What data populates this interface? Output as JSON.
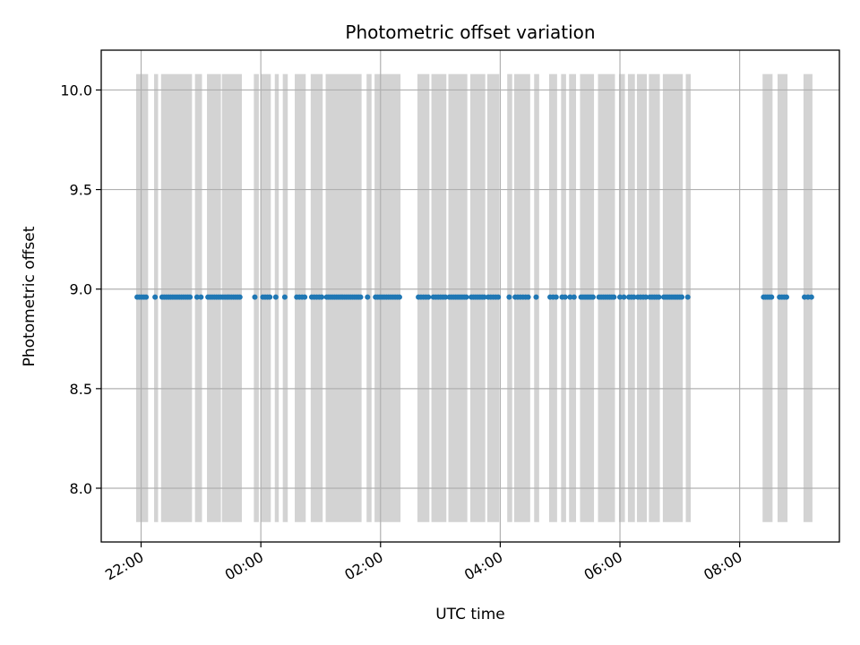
{
  "chart_data": {
    "type": "scatter",
    "title": "Photometric offset variation",
    "xlabel": "UTC time",
    "ylabel": "Photometric offset",
    "grid": true,
    "x_tick_labels": [
      "22:00",
      "00:00",
      "02:00",
      "04:00",
      "06:00",
      "08:00"
    ],
    "y_tick_labels": [
      "8.0",
      "8.5",
      "9.0",
      "9.5",
      "10.0"
    ],
    "y_ticks": [
      8.0,
      8.5,
      9.0,
      9.5,
      10.0
    ],
    "xlim": [
      "21:20",
      "09:40"
    ],
    "ylim": [
      7.73,
      10.2
    ],
    "shaded_bands_range": [
      7.83,
      10.08
    ],
    "shaded_intervals": [
      [
        "21:55",
        "22:07"
      ],
      [
        "22:13",
        "22:17"
      ],
      [
        "22:20",
        "22:51"
      ],
      [
        "22:54",
        "23:01"
      ],
      [
        "23:06",
        "23:20"
      ],
      [
        "23:21",
        "23:41"
      ],
      [
        "23:53",
        "23:58"
      ],
      [
        "00:00",
        "00:10"
      ],
      [
        "00:14",
        "00:18"
      ],
      [
        "00:22",
        "00:27"
      ],
      [
        "00:34",
        "00:45"
      ],
      [
        "00:50",
        "01:02"
      ],
      [
        "01:05",
        "01:41"
      ],
      [
        "01:46",
        "01:51"
      ],
      [
        "01:54",
        "02:20"
      ],
      [
        "02:37",
        "02:49"
      ],
      [
        "02:51",
        "03:06"
      ],
      [
        "03:08",
        "03:27"
      ],
      [
        "03:30",
        "03:45"
      ],
      [
        "03:47",
        "03:59"
      ],
      [
        "04:07",
        "04:12"
      ],
      [
        "04:14",
        "04:30"
      ],
      [
        "04:34",
        "04:39"
      ],
      [
        "04:49",
        "04:57"
      ],
      [
        "05:01",
        "05:06"
      ],
      [
        "05:09",
        "05:16"
      ],
      [
        "05:20",
        "05:34"
      ],
      [
        "05:38",
        "05:55"
      ],
      [
        "05:59",
        "06:05"
      ],
      [
        "06:08",
        "06:15"
      ],
      [
        "06:17",
        "06:27"
      ],
      [
        "06:29",
        "06:40"
      ],
      [
        "06:43",
        "07:03"
      ],
      [
        "07:06",
        "07:11"
      ],
      [
        "08:23",
        "08:33"
      ],
      [
        "08:38",
        "08:48"
      ],
      [
        "09:04",
        "09:13"
      ]
    ],
    "point_value": 8.96,
    "point_clusters": [
      {
        "start": "21:56",
        "end": "22:05",
        "n": 5
      },
      {
        "start": "22:14",
        "end": "22:14",
        "n": 1
      },
      {
        "start": "22:21",
        "end": "22:49",
        "n": 14
      },
      {
        "start": "22:56",
        "end": "23:00",
        "n": 2
      },
      {
        "start": "23:07",
        "end": "23:39",
        "n": 16
      },
      {
        "start": "23:54",
        "end": "23:54",
        "n": 1
      },
      {
        "start": "00:02",
        "end": "00:09",
        "n": 4
      },
      {
        "start": "00:15",
        "end": "00:15",
        "n": 1
      },
      {
        "start": "00:24",
        "end": "00:24",
        "n": 1
      },
      {
        "start": "00:36",
        "end": "00:44",
        "n": 4
      },
      {
        "start": "00:51",
        "end": "01:01",
        "n": 5
      },
      {
        "start": "01:06",
        "end": "01:40",
        "n": 18
      },
      {
        "start": "01:47",
        "end": "01:47",
        "n": 1
      },
      {
        "start": "01:55",
        "end": "02:19",
        "n": 12
      },
      {
        "start": "02:38",
        "end": "02:48",
        "n": 5
      },
      {
        "start": "02:53",
        "end": "03:05",
        "n": 6
      },
      {
        "start": "03:09",
        "end": "03:26",
        "n": 9
      },
      {
        "start": "03:31",
        "end": "03:44",
        "n": 7
      },
      {
        "start": "03:48",
        "end": "03:58",
        "n": 5
      },
      {
        "start": "04:09",
        "end": "04:09",
        "n": 1
      },
      {
        "start": "04:15",
        "end": "04:28",
        "n": 6
      },
      {
        "start": "04:36",
        "end": "04:36",
        "n": 1
      },
      {
        "start": "04:50",
        "end": "04:56",
        "n": 3
      },
      {
        "start": "05:02",
        "end": "05:05",
        "n": 2
      },
      {
        "start": "05:10",
        "end": "05:14",
        "n": 2
      },
      {
        "start": "05:21",
        "end": "05:33",
        "n": 7
      },
      {
        "start": "05:39",
        "end": "05:54",
        "n": 8
      },
      {
        "start": "06:00",
        "end": "06:04",
        "n": 2
      },
      {
        "start": "06:09",
        "end": "06:14",
        "n": 3
      },
      {
        "start": "06:18",
        "end": "06:26",
        "n": 4
      },
      {
        "start": "06:30",
        "end": "06:39",
        "n": 5
      },
      {
        "start": "06:44",
        "end": "07:02",
        "n": 10
      },
      {
        "start": "07:08",
        "end": "07:08",
        "n": 1
      },
      {
        "start": "08:24",
        "end": "08:32",
        "n": 5
      },
      {
        "start": "08:40",
        "end": "08:47",
        "n": 4
      },
      {
        "start": "09:05",
        "end": "09:12",
        "n": 3
      }
    ],
    "colors": {
      "points": "#1f77b4",
      "bands": "#d3d3d3",
      "grid": "#b0b0b0",
      "axes": "#000000"
    }
  }
}
